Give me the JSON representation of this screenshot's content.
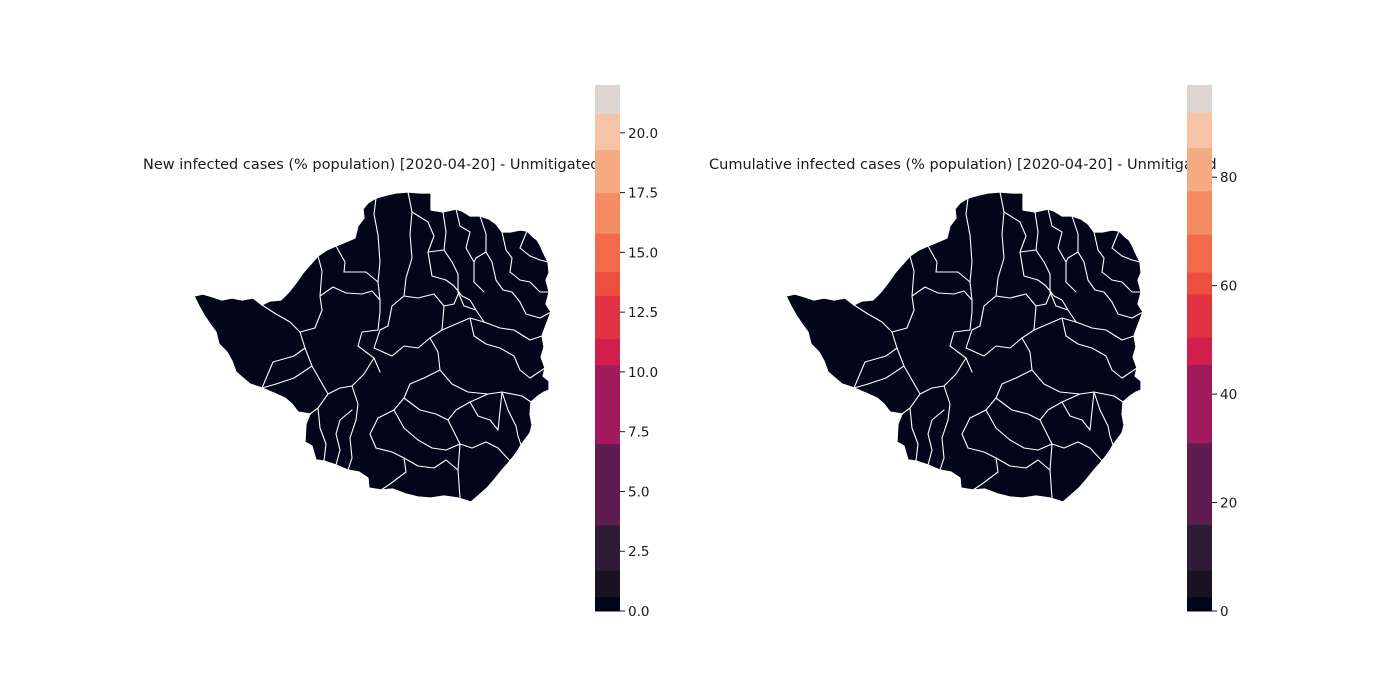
{
  "maps": [
    {
      "title": "New infected cases (% population) [2020-04-20] - Unmitigated",
      "colorbar": {
        "ticks": [
          "0.0",
          "2.5",
          "5.0",
          "7.5",
          "10.0",
          "12.5",
          "15.0",
          "17.5",
          "20.0"
        ],
        "tick_values": [
          0,
          2.5,
          5,
          7.5,
          10,
          12.5,
          15,
          17.5,
          20
        ],
        "range": [
          0,
          22
        ],
        "bands": [
          {
            "from": 0,
            "to": 0.6,
            "color": "#03051a"
          },
          {
            "from": 0.6,
            "to": 1.7,
            "color": "#1a1422"
          },
          {
            "from": 1.7,
            "to": 3.6,
            "color": "#2e1c36"
          },
          {
            "from": 3.6,
            "to": 7.0,
            "color": "#5e1c52"
          },
          {
            "from": 7.0,
            "to": 10.3,
            "color": "#a11a5b"
          },
          {
            "from": 10.3,
            "to": 11.4,
            "color": "#d21e4d"
          },
          {
            "from": 11.4,
            "to": 13.2,
            "color": "#e13342"
          },
          {
            "from": 13.2,
            "to": 14.2,
            "color": "#ec4f3e"
          },
          {
            "from": 14.2,
            "to": 15.8,
            "color": "#f26b4a"
          },
          {
            "from": 15.8,
            "to": 17.5,
            "color": "#f58c63"
          },
          {
            "from": 17.5,
            "to": 19.3,
            "color": "#f6aa82"
          },
          {
            "from": 19.3,
            "to": 20.8,
            "color": "#f6c4a4"
          },
          {
            "from": 20.8,
            "to": 22,
            "color": "#dcd5d1"
          }
        ]
      },
      "region_fill_color": "#03051a"
    },
    {
      "title": "Cumulative infected cases (% population) [2020-04-20] - Unmitigated",
      "colorbar": {
        "ticks": [
          "0",
          "20",
          "40",
          "60",
          "80"
        ],
        "tick_values": [
          0,
          20,
          40,
          60,
          80
        ],
        "range": [
          0,
          97
        ],
        "bands": [
          {
            "from": 0,
            "to": 2.6,
            "color": "#03051a"
          },
          {
            "from": 2.6,
            "to": 7.5,
            "color": "#1a1422"
          },
          {
            "from": 7.5,
            "to": 16,
            "color": "#2e1c36"
          },
          {
            "from": 16,
            "to": 31,
            "color": "#5e1c52"
          },
          {
            "from": 31,
            "to": 45.5,
            "color": "#a11a5b"
          },
          {
            "from": 45.5,
            "to": 50.5,
            "color": "#d21e4d"
          },
          {
            "from": 50.5,
            "to": 58.5,
            "color": "#e13342"
          },
          {
            "from": 58.5,
            "to": 62.5,
            "color": "#ec4f3e"
          },
          {
            "from": 62.5,
            "to": 69.5,
            "color": "#f26b4a"
          },
          {
            "from": 69.5,
            "to": 77.5,
            "color": "#f58c63"
          },
          {
            "from": 77.5,
            "to": 85.5,
            "color": "#f6aa82"
          },
          {
            "from": 85.5,
            "to": 92,
            "color": "#f6c4a4"
          },
          {
            "from": 92,
            "to": 97,
            "color": "#dcd5d1"
          }
        ]
      },
      "region_fill_color": "#03051a"
    }
  ]
}
